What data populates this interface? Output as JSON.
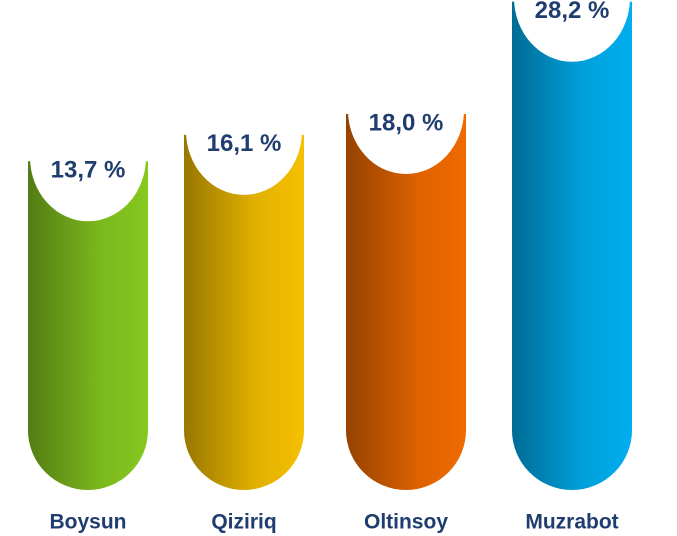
{
  "chart_data": {
    "type": "bar",
    "categories": [
      "Boysun",
      "Qiziriq",
      "Oltinsoy",
      "Muzrabot"
    ],
    "values": [
      13.7,
      16.1,
      18.0,
      28.2
    ],
    "value_labels": [
      "13,7 %",
      "16,1 %",
      "18,0 %",
      "28,2 %"
    ],
    "colors": [
      "#86c81f",
      "#f5c000",
      "#f06a00",
      "#00aeef"
    ]
  }
}
